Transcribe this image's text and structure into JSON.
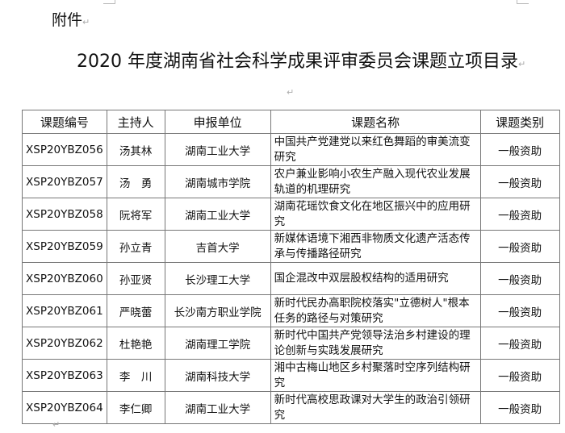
{
  "attachment_label": "附件",
  "title": "2020 年度湖南省社会科学成果评审委员会课题立项目录",
  "table": {
    "headers": [
      "课题编号",
      "主持人",
      "申报单位",
      "课题名称",
      "课题类别"
    ],
    "rows": [
      [
        "XSP20YBZ056",
        "汤其林",
        "湖南工业大学",
        "中国共产党建党以来红色舞蹈的审美流变研究",
        "一般资助"
      ],
      [
        "XSP20YBZ057",
        "汤　勇",
        "湖南城市学院",
        "农户兼业影响小农生产融入现代农业发展轨道的机理研究",
        "一般资助"
      ],
      [
        "XSP20YBZ058",
        "阮将军",
        "湖南工业大学",
        "湖南花瑶饮食文化在地区振兴中的应用研究",
        "一般资助"
      ],
      [
        "XSP20YBZ059",
        "孙立青",
        "吉首大学",
        "新媒体语境下湘西非物质文化遗产活态传承与传播路径研究",
        "一般资助"
      ],
      [
        "XSP20YBZ060",
        "孙亚贤",
        "长沙理工大学",
        "国企混改中双层股权结构的适用研究",
        "一般资助"
      ],
      [
        "XSP20YBZ061",
        "严晓蕾",
        "长沙南方职业学院",
        "新时代民办高职院校落实\"立德树人\"根本任务的路径与对策研究",
        "一般资助"
      ],
      [
        "XSP20YBZ062",
        "杜艳艳",
        "湖南理工学院",
        "新时代中国共产党领导法治乡村建设的理论创新与实践发展研究",
        "一般资助"
      ],
      [
        "XSP20YBZ063",
        "李　川",
        "湖南科技大学",
        "湘中古梅山地区乡村聚落时空序列结构研究",
        "一般资助"
      ],
      [
        "XSP20YBZ064",
        "李仁卿",
        "湖南工业大学",
        "新时代高校思政课对大学生的政治引领研究",
        "一般资助"
      ]
    ]
  }
}
